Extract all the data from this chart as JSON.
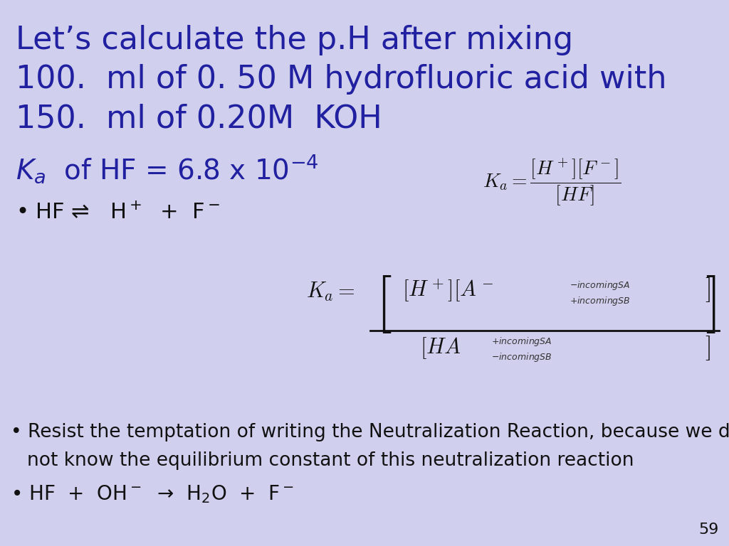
{
  "bg_color": "#d0d0ee",
  "text_color_blue": "#2020a0",
  "text_color_dark": "#111111",
  "title_line1": "Let’s calculate the p.H after mixing",
  "title_line2": "100.  ml of 0. 50 M hydrofluoric acid with",
  "title_line3": "150.  ml of 0.20M  KOH",
  "bullet_hf_pre": "• HF ⇔   H",
  "bullet_resist1": "• Resist the temptation of writing the Neutralization Reaction, because we do",
  "bullet_resist2": "  not know the equilibrium constant of this neutralization reaction",
  "bullet_rxn": "• HF  +  OH",
  "page_num": "59"
}
